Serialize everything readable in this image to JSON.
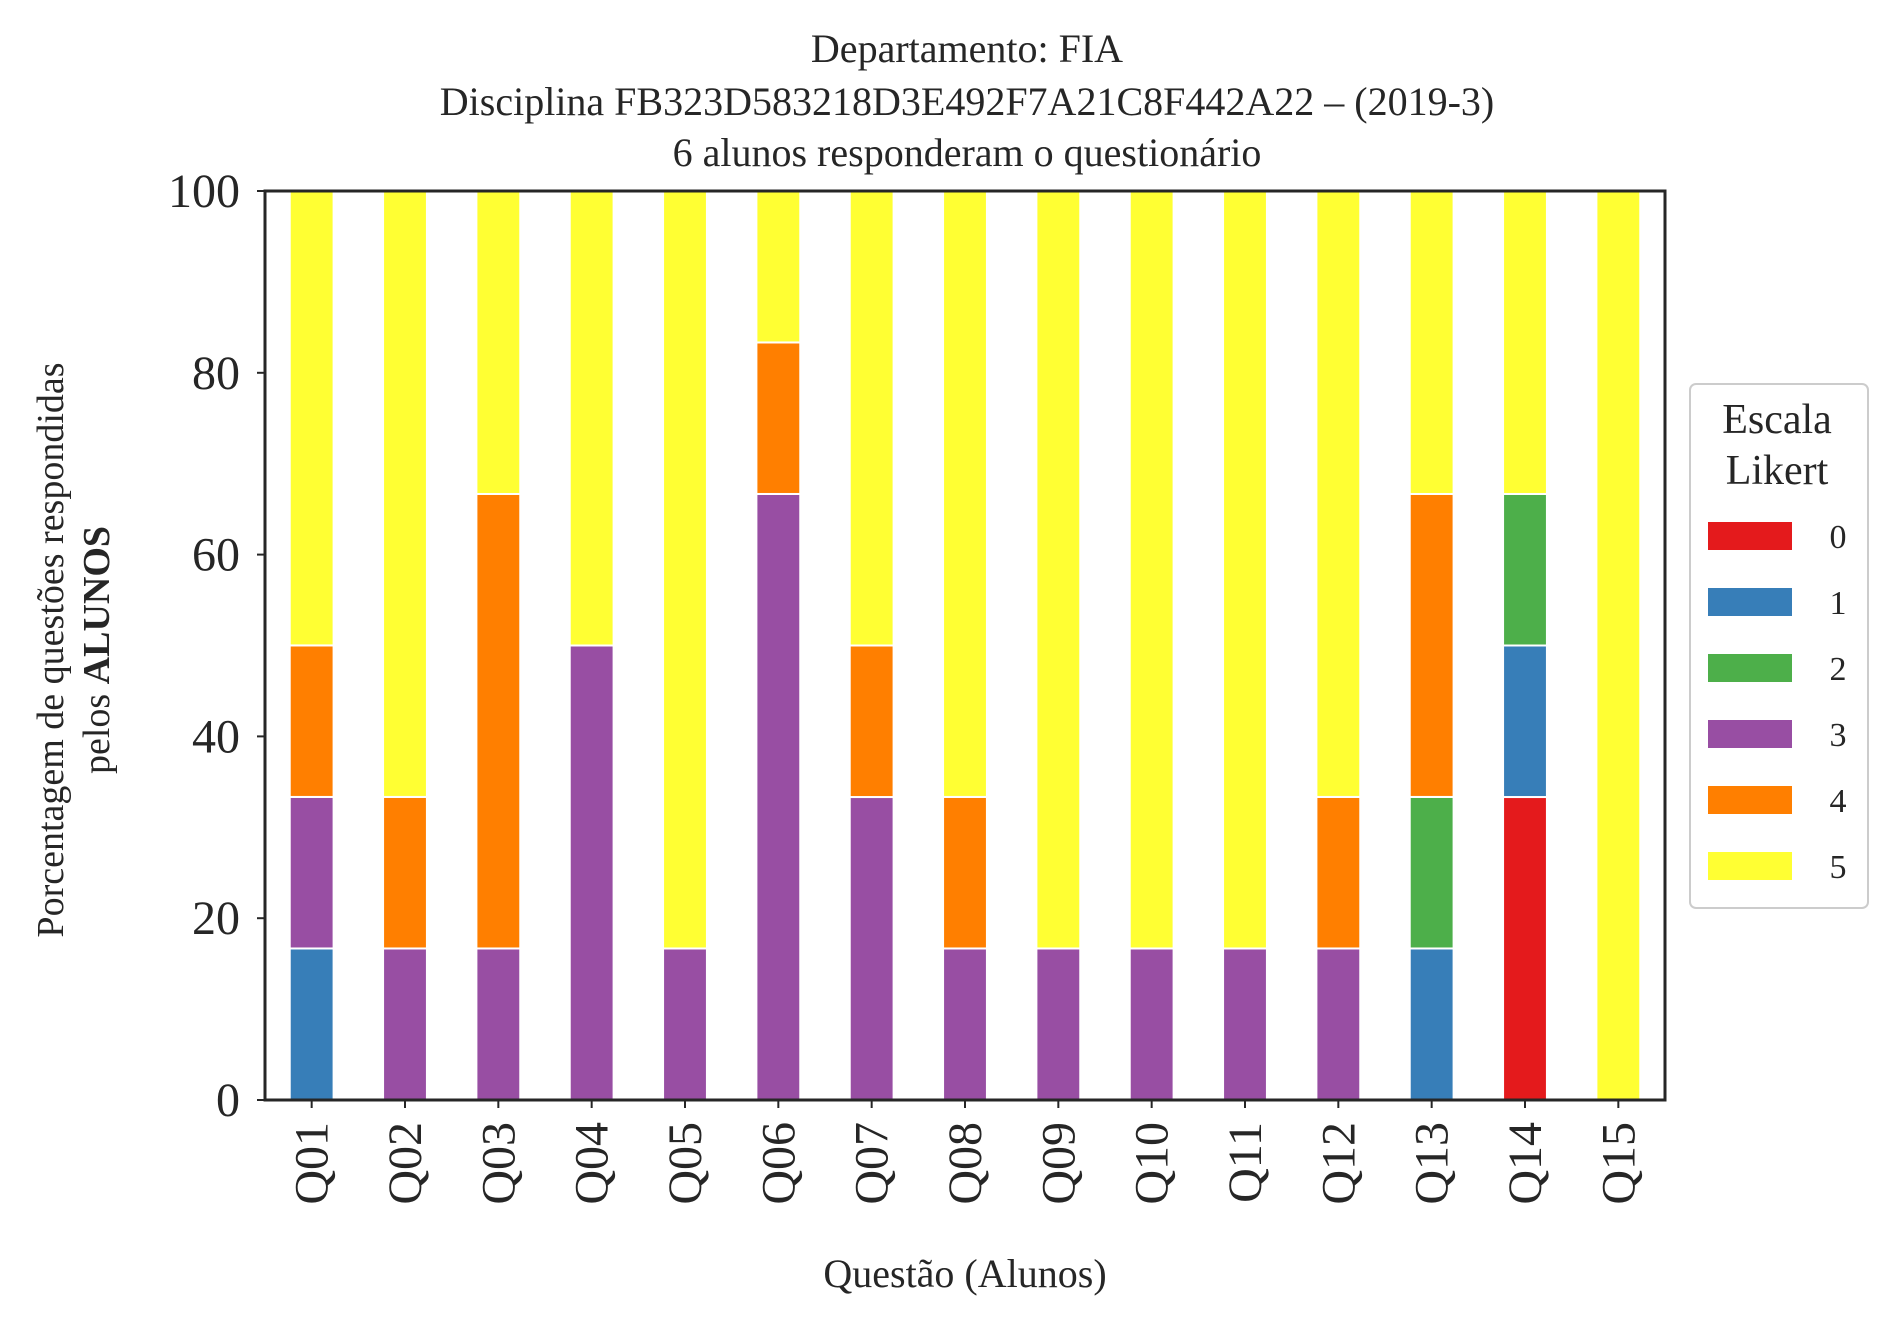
{
  "chart_data": {
    "type": "bar",
    "stacked": true,
    "title_lines": [
      "Departamento: FIA",
      "Disciplina FB323D583218D3E492F7A21C8F442A22 – (2019-3)",
      "6 alunos responderam o questionário"
    ],
    "xlabel": "Questão (Alunos)",
    "ylabel_line1": "Porcentagem de questões respondidas",
    "ylabel_line2_prefix": "pelos ",
    "ylabel_line2_bold": "ALUNOS",
    "ylim": [
      0,
      100
    ],
    "yticks": [
      "0",
      "20",
      "40",
      "60",
      "80",
      "100"
    ],
    "grid": false,
    "legend": {
      "title_lines": [
        "Escala",
        "Likert"
      ],
      "placement": "center-right outside"
    },
    "categories": [
      "Q01",
      "Q02",
      "Q03",
      "Q04",
      "Q05",
      "Q06",
      "Q07",
      "Q08",
      "Q09",
      "Q10",
      "Q11",
      "Q12",
      "Q13",
      "Q14",
      "Q15"
    ],
    "series": [
      {
        "name": "0",
        "color": "#e41a1c",
        "values": [
          0,
          0,
          0,
          0,
          0,
          0,
          0,
          0,
          0,
          0,
          0,
          0,
          0,
          33.33,
          0
        ]
      },
      {
        "name": "1",
        "color": "#377eb8",
        "values": [
          16.67,
          0,
          0,
          0,
          0,
          0,
          0,
          0,
          0,
          0,
          0,
          0,
          16.67,
          16.67,
          0
        ]
      },
      {
        "name": "2",
        "color": "#4daf4a",
        "values": [
          0,
          0,
          0,
          0,
          0,
          0,
          0,
          0,
          0,
          0,
          0,
          0,
          16.67,
          16.67,
          0
        ]
      },
      {
        "name": "3",
        "color": "#984ea3",
        "values": [
          16.67,
          16.67,
          16.67,
          50,
          16.67,
          66.67,
          33.33,
          16.67,
          16.67,
          16.67,
          16.67,
          16.67,
          0,
          0,
          0
        ]
      },
      {
        "name": "4",
        "color": "#ff7f00",
        "values": [
          16.67,
          16.67,
          50,
          0,
          0,
          16.67,
          16.67,
          16.67,
          0,
          0,
          0,
          16.67,
          33.33,
          0,
          0
        ]
      },
      {
        "name": "5",
        "color": "#ffff33",
        "values": [
          50,
          66.67,
          33.33,
          50,
          83.33,
          16.67,
          50,
          66.67,
          83.33,
          83.33,
          83.33,
          66.67,
          33.33,
          33.33,
          100
        ]
      }
    ]
  }
}
